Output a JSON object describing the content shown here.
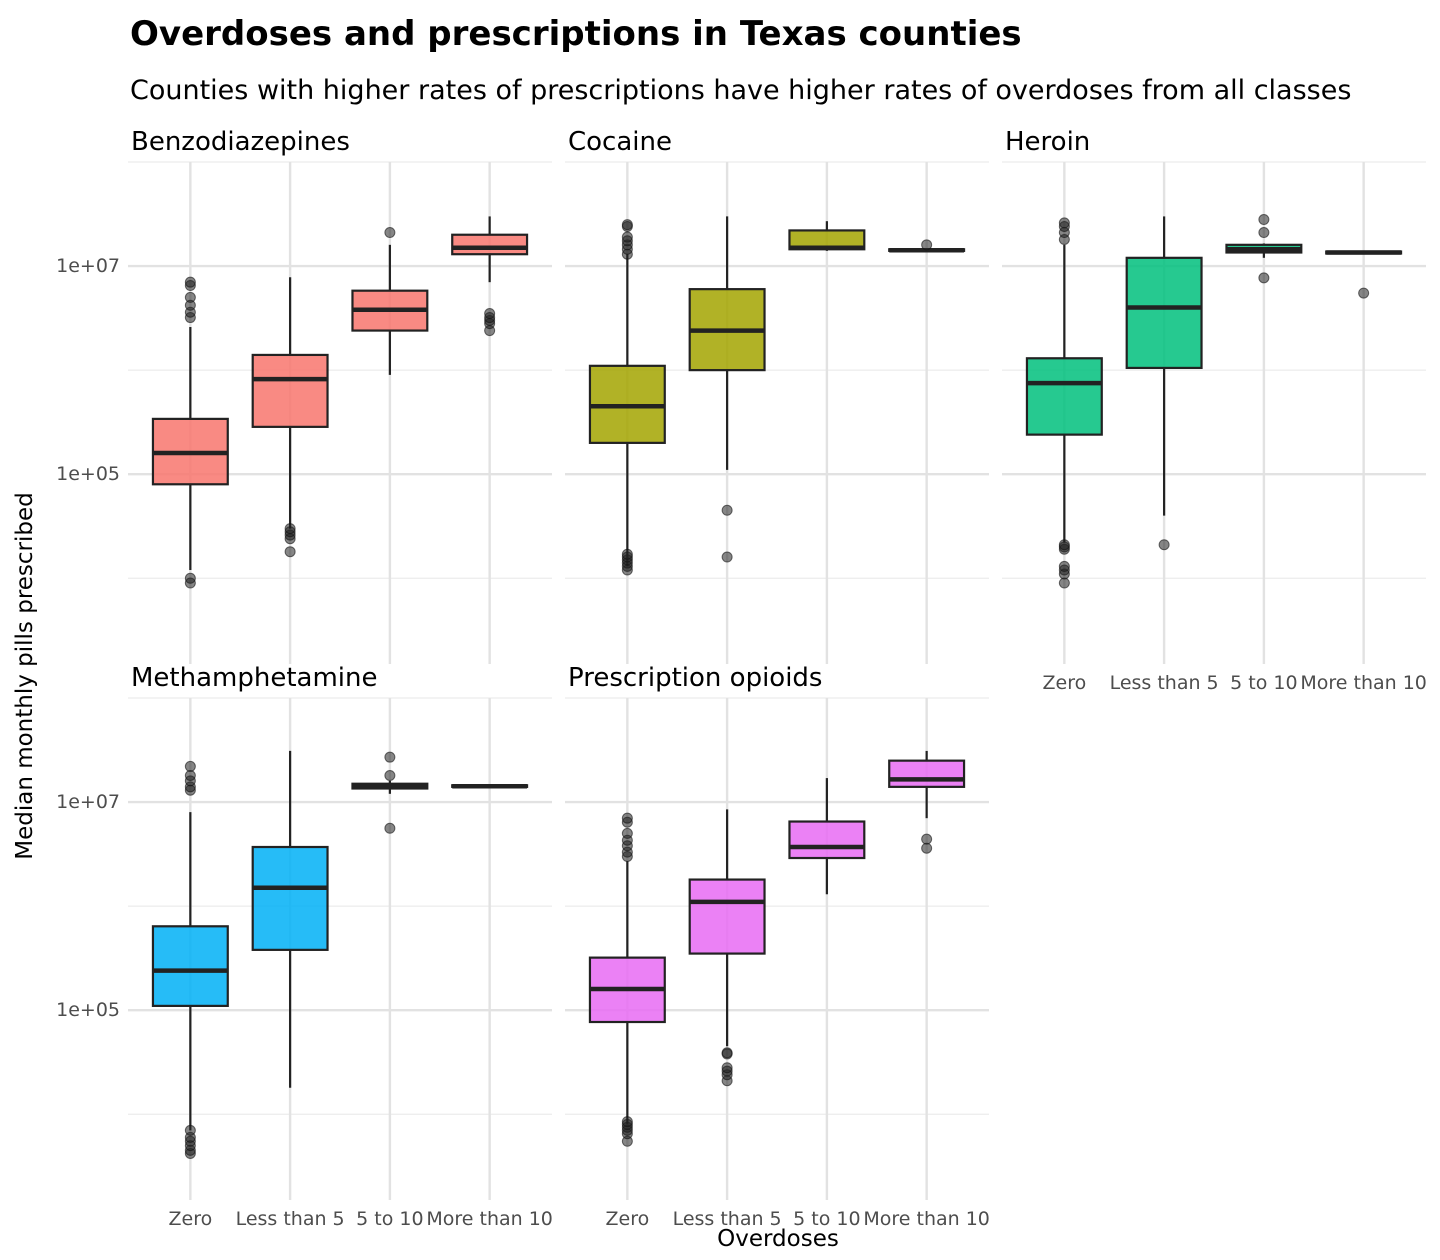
{
  "chart_data": {
    "type": "boxplot",
    "title": "Overdoses and prescriptions in Texas counties",
    "subtitle": "Counties with higher rates of prescriptions have higher rates of overdoses from all classes",
    "xlabel": "Overdoses",
    "ylabel": "Median monthly pills prescribed",
    "y_scale": "log10",
    "ylim": [
      1500,
      100000000
    ],
    "y_ticks": [
      100000,
      10000000
    ],
    "y_tick_labels": [
      "1e+05",
      "1e+07"
    ],
    "categories": [
      "Zero",
      "Less than 5",
      "5 to 10",
      "More than 10"
    ],
    "grid": true,
    "legend": "none",
    "panels": [
      {
        "name": "Benzodiazepines",
        "color": "#F8766D",
        "boxes": [
          {
            "category": "Zero",
            "whisker_low": 12000,
            "q1": 80000,
            "median": 160000,
            "q3": 340000,
            "whisker_high": 2600000,
            "outliers": [
              9000,
              10000,
              3200000,
              3600000,
              4200000,
              5000000,
              6500000,
              7000000
            ]
          },
          {
            "category": "Less than 5",
            "whisker_low": 30000,
            "q1": 285000,
            "median": 820000,
            "q3": 1400000,
            "whisker_high": 7800000,
            "outliers": [
              18000,
              24000,
              26000,
              28000,
              30000
            ]
          },
          {
            "category": "5 to 10",
            "whisker_low": 900000,
            "q1": 2400000,
            "median": 3800000,
            "q3": 5800000,
            "whisker_high": 16000000,
            "outliers": [
              21000000
            ]
          },
          {
            "category": "More than 10",
            "whisker_low": 7000000,
            "q1": 13000000,
            "median": 15000000,
            "q3": 20000000,
            "whisker_high": 30000000,
            "outliers": [
              2400000,
              2800000,
              3000000,
              3200000,
              3500000
            ]
          }
        ]
      },
      {
        "name": "Cocaine",
        "color": "#A3A500",
        "boxes": [
          {
            "category": "Zero",
            "whisker_low": 13000,
            "q1": 200000,
            "median": 450000,
            "q3": 1100000,
            "whisker_high": 13000000,
            "outliers": [
              12000,
              13000,
              14000,
              15000,
              16000,
              17000,
              13000000,
              14500000,
              16000000,
              17500000,
              19000000,
              24000000,
              25000000
            ]
          },
          {
            "category": "Less than 5",
            "whisker_low": 110000,
            "q1": 1000000,
            "median": 2400000,
            "q3": 6000000,
            "whisker_high": 30000000,
            "outliers": [
              16000,
              45000
            ]
          },
          {
            "category": "5 to 10",
            "whisker_low": 14000000,
            "q1": 14500000,
            "median": 15000000,
            "q3": 22000000,
            "whisker_high": 27000000,
            "outliers": []
          },
          {
            "category": "More than 10",
            "whisker_low": 13800000,
            "q1": 14000000,
            "median": 14200000,
            "q3": 14500000,
            "whisker_high": 14500000,
            "outliers": [
              16000000
            ]
          }
        ]
      },
      {
        "name": "Heroin",
        "color": "#00BF7D",
        "boxes": [
          {
            "category": "Zero",
            "whisker_low": 22000,
            "q1": 240000,
            "median": 750000,
            "q3": 1300000,
            "whisker_high": 16000000,
            "outliers": [
              9000,
              11000,
              12000,
              13000,
              19000,
              20000,
              21000,
              18000000,
              21000000,
              24000000,
              26000000
            ]
          },
          {
            "category": "Less than 5",
            "whisker_low": 40000,
            "q1": 1050000,
            "median": 4000000,
            "q3": 12000000,
            "whisker_high": 30000000,
            "outliers": [
              21000
            ]
          },
          {
            "category": "5 to 10",
            "whisker_low": 12000000,
            "q1": 13500000,
            "median": 14500000,
            "q3": 16000000,
            "whisker_high": 16500000,
            "outliers": [
              7700000,
              21000000,
              28000000
            ]
          },
          {
            "category": "More than 10",
            "whisker_low": 13000000,
            "q1": 13200000,
            "median": 13500000,
            "q3": 13800000,
            "whisker_high": 13800000,
            "outliers": [
              5500000
            ]
          }
        ]
      },
      {
        "name": "Methamphetamine",
        "color": "#00B0F6",
        "boxes": [
          {
            "category": "Zero",
            "whisker_low": 7000,
            "q1": 110000,
            "median": 240000,
            "q3": 640000,
            "whisker_high": 8000000,
            "outliers": [
              4200,
              4500,
              5000,
              5500,
              6000,
              7000,
              13000000,
              14000000,
              16000000,
              18000000,
              22000000
            ]
          },
          {
            "category": "Less than 5",
            "whisker_low": 18000,
            "q1": 380000,
            "median": 1500000,
            "q3": 3700000,
            "whisker_high": 31000000,
            "outliers": []
          },
          {
            "category": "5 to 10",
            "whisker_low": 12000000,
            "q1": 13500000,
            "median": 14500000,
            "q3": 15000000,
            "whisker_high": 16000000,
            "outliers": [
              5600000,
              18000000,
              27000000
            ]
          },
          {
            "category": "More than 10",
            "whisker_low": 14000000,
            "q1": 14000000,
            "median": 14200000,
            "q3": 14500000,
            "whisker_high": 14500000,
            "outliers": []
          }
        ]
      },
      {
        "name": "Prescription opioids",
        "color": "#E76BF3",
        "boxes": [
          {
            "category": "Zero",
            "whisker_low": 8000,
            "q1": 77000,
            "median": 160000,
            "q3": 320000,
            "whisker_high": 2700000,
            "outliers": [
              5500,
              6500,
              7000,
              7500,
              8000,
              8500,
              3000000,
              3300000,
              3800000,
              4300000,
              5000000,
              6400000,
              7000000
            ]
          },
          {
            "category": "Less than 5",
            "whisker_low": 45000,
            "q1": 350000,
            "median": 1100000,
            "q3": 1800000,
            "whisker_high": 8500000,
            "outliers": [
              21000,
              24000,
              26000,
              28000,
              38000,
              39000
            ]
          },
          {
            "category": "5 to 10",
            "whisker_low": 1300000,
            "q1": 2900000,
            "median": 3700000,
            "q3": 6500000,
            "whisker_high": 17000000,
            "outliers": []
          },
          {
            "category": "More than 10",
            "whisker_low": 7000000,
            "q1": 14000000,
            "median": 16500000,
            "q3": 25000000,
            "whisker_high": 31000000,
            "outliers": [
              3600000,
              4400000
            ]
          }
        ]
      }
    ]
  }
}
